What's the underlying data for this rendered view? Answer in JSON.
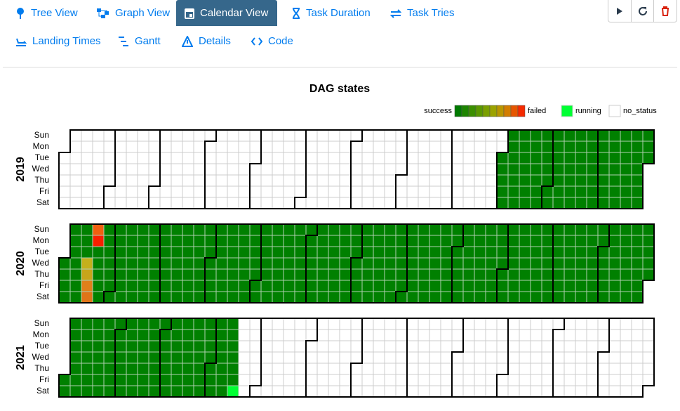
{
  "nav": {
    "tabs": [
      "Tree View",
      "Graph View",
      "Calendar View",
      "Task Duration",
      "Task Tries",
      "Landing Times",
      "Gantt",
      "Details",
      "Code"
    ]
  },
  "calendar": {
    "title": "DAG states",
    "legend": {
      "gradient_start": "success",
      "gradient_end": "failed",
      "running": "running",
      "no_status": "no_status"
    },
    "years": [
      "2019",
      "2020",
      "2021"
    ],
    "weekdays": [
      "Sun",
      "Mon",
      "Tue",
      "Wed",
      "Thu",
      "Fri",
      "Sat"
    ]
  }
}
